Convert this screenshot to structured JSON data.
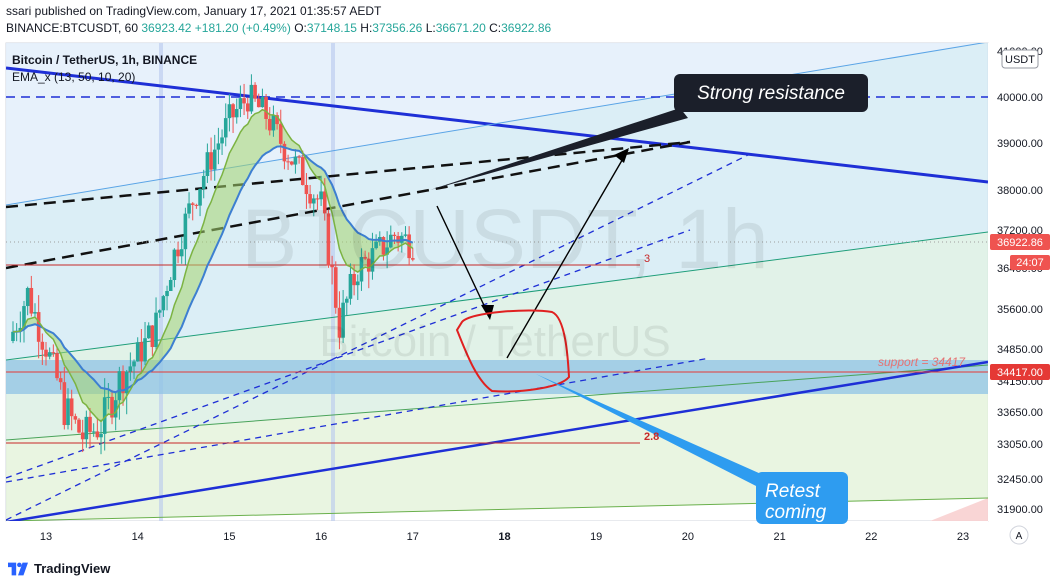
{
  "header": {
    "line1": "ssari published on TradingView.com, January 17, 2021 01:35:57 AEDT",
    "symbol_line": "BINANCE:BTCUSDT, 60",
    "last": "36923.42",
    "change": "+181.20 (+0.49%)",
    "o_label": "O:",
    "o": "37148.15",
    "h_label": "H:",
    "h": "37356.26",
    "l_label": "L:",
    "l": "36671.20",
    "c_label": "C:",
    "c": "36922.86"
  },
  "legend": {
    "title": "Bitcoin / TetherUS, 1h, BINANCE",
    "ema": "EMA_x (13, 50, 10, 20)"
  },
  "watermark": {
    "big": "BTCUSDT, 1h",
    "small": "Bitcoin / TetherUS"
  },
  "currency_badge": "USDT",
  "annotations": {
    "resistance": "Strong resistance",
    "retest": [
      "Retest",
      "coming"
    ],
    "support_label": "support = 34417",
    "fib_3": "3",
    "fib_2": "2.8"
  },
  "price_tags": {
    "current": "36922.86",
    "countdown": "24:07",
    "support": "34417.00"
  },
  "footer": {
    "brand": "TradingView"
  },
  "chart_data": {
    "type": "line",
    "ylim": [
      31600,
      41200
    ],
    "y_ticks": [
      "41000.00",
      "40000.00",
      "39000.00",
      "38000.00",
      "37200.00",
      "36400.00",
      "35600.00",
      "34850.00",
      "34150.00",
      "33650.00",
      "33050.00",
      "32450.00",
      "31900.00"
    ],
    "x_ticks": [
      "13",
      "14",
      "15",
      "16",
      "17",
      "18",
      "19",
      "20",
      "21",
      "22",
      "23"
    ],
    "price_series": {
      "x": [
        12.6,
        12.8,
        13.0,
        13.2,
        13.4,
        13.6,
        13.8,
        14.0,
        14.2,
        14.4,
        14.6,
        14.8,
        15.0,
        15.2,
        15.4,
        15.6,
        15.8,
        16.0,
        16.2,
        16.4,
        16.6,
        16.8,
        17.0
      ],
      "close": [
        35000,
        35900,
        34900,
        33700,
        33200,
        33400,
        34200,
        34700,
        35300,
        36700,
        37800,
        38700,
        39500,
        40000,
        39600,
        38900,
        38300,
        37700,
        35300,
        36400,
        36700,
        37100,
        36923
      ]
    },
    "levels": [
      {
        "name": "support",
        "value": 34417,
        "color": "#e53935"
      },
      {
        "name": "resistance",
        "value": 40000,
        "color": "#1e3bd6"
      }
    ],
    "scale": "linear",
    "grid": false,
    "legend": "top-left"
  }
}
